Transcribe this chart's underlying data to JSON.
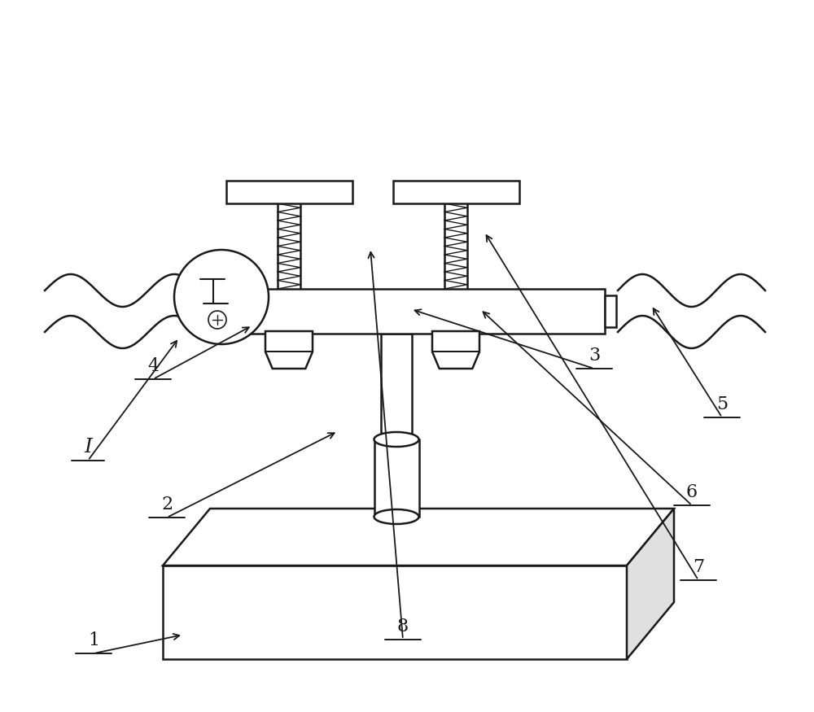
{
  "bg_color": "#ffffff",
  "line_color": "#1a1a1a",
  "line_width": 1.8,
  "fig_width": 10.0,
  "fig_height": 8.75,
  "dpi": 100
}
